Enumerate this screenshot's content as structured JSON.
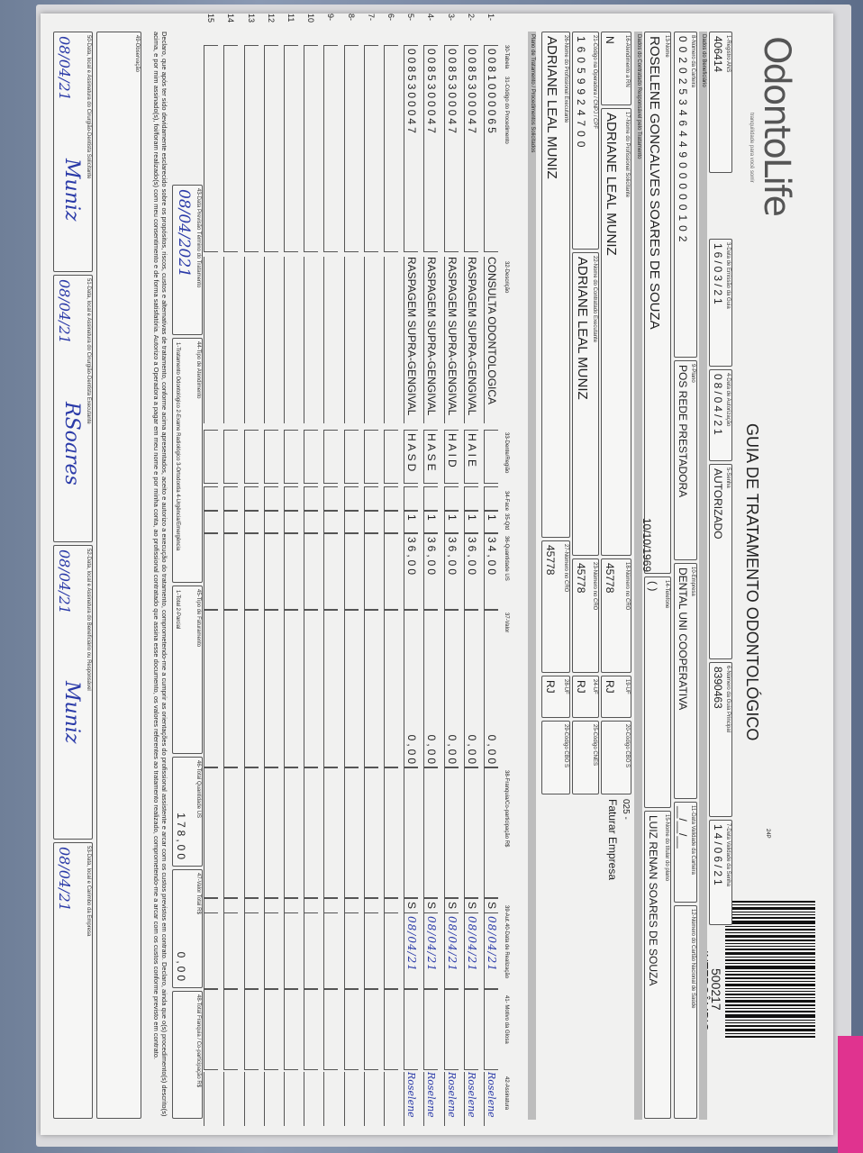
{
  "brand": {
    "logo": "OdontoLife",
    "tagline": "tranquilidade para você sorrir"
  },
  "title": "GUIA DE TRATAMENTO ODONTOLÓGICO",
  "page_code": "24P",
  "guide_number": "500217",
  "guide_type": "INTERCÂMBIO",
  "header": {
    "registro_ans": {
      "label": "1-Registro ANS",
      "value": "406414"
    },
    "data_emissao": {
      "label": "3-Data de Emissão da Guia",
      "value": "16/03/21"
    },
    "data_autorizacao": {
      "label": "4-Data de Autorização",
      "value": "08/04/21"
    },
    "senha": {
      "label": "5-Senha",
      "value": "AUTORIZADO"
    },
    "guia_principal": {
      "label": "6-Número da Guia Principal",
      "value": "8390463"
    },
    "validade_senha": {
      "label": "7-Data Validade da Senha",
      "value": "14/06/21"
    }
  },
  "beneficiario": {
    "section": "Dados do Beneficiário",
    "carteira": {
      "label": "8-Número da Carteira",
      "value": "00202534644900000102"
    },
    "plano": {
      "label": "9-Plano",
      "value": "POS REDE PRESTADORA"
    },
    "empresa": {
      "label": "10-Empresa",
      "value": "DENTAL UNI COOPERATIVA"
    },
    "validade_carteira": {
      "label": "11-Data Validade da Carteira",
      "value": "__/__/__"
    },
    "cns": {
      "label": "12-Número do Cartão Nacional de Saúde",
      "value": ""
    },
    "nome": {
      "label": "13-Nome",
      "value": "ROSELENE GONCALVES SOARES DE SOUZA"
    },
    "nascimento": "10/10/1969",
    "telefone": {
      "label": "14-Telefone",
      "value": "(   )"
    },
    "titular": {
      "label": "15-Nome do titular do plano",
      "value": "LUIZ RENAN SOARES DE SOUZA"
    }
  },
  "contratado": {
    "section": "Dados do Contratado Responsável pelo Tratamento",
    "rn": {
      "label": "16-Atendimento a RN",
      "value": "N"
    },
    "solicitante": {
      "label": "17-Nome do Profissional Solicitante",
      "value": "ADRIANE LEAL MUNIZ"
    },
    "cro18": {
      "label": "18-Número no CRO",
      "value": "45778"
    },
    "uf19": {
      "label": "19-UF",
      "value": "RJ"
    },
    "cbo20": {
      "label": "20-Código CBO S",
      "value": ""
    },
    "billing_code": "025 -",
    "billing_label": "Faturar Empresa",
    "codigo_operadora": {
      "label": "21-Código na Operadora / CNPJ / CPF",
      "value": "16059924700"
    },
    "executante": {
      "label": "22-Nome do Contratado Executante",
      "value": "ADRIANE LEAL MUNIZ"
    },
    "cro23": {
      "label": "23-Número no CRO",
      "value": "45778"
    },
    "uf24": {
      "label": "24-UF",
      "value": "RJ"
    },
    "cnes": {
      "label": "25-Código CNES",
      "value": ""
    },
    "prof_exec": {
      "label": "26-Nome do Profissional Executante",
      "value": "ADRIANE LEAL MUNIZ"
    },
    "cro27": {
      "label": "27-Número no CRO",
      "value": "45778"
    },
    "uf28": {
      "label": "28-UF",
      "value": "RJ"
    },
    "cbo29": {
      "label": "29-Código CBO S",
      "value": ""
    }
  },
  "plano_section": "Plano de Tratamento / Procedimentos Solicitados",
  "columns": [
    "30-Tabela",
    "31-Código do Procedimento",
    "32-Descrição",
    "33-Dente/Região",
    "34-Face",
    "35-Qtd",
    "36-Quantidade US",
    "37-Valor",
    "38-Franquia/Co-participação R$",
    "39-Aut.",
    "40-Data de Realização",
    "41- Motivo da Glosa",
    "42-Assinatura"
  ],
  "procedures": [
    {
      "n": "1-",
      "code": "0081000065",
      "desc": "CONSULTA ODONTOLOGICA",
      "dente": "",
      "qtd": "1",
      "us": "34,00",
      "valor": "0,00",
      "aut": "S",
      "data": "08/04/21",
      "assin": "Roselene"
    },
    {
      "n": "2-",
      "code": "0085300047",
      "desc": "RASPAGEM SUPRA-GENGIVAL",
      "dente": "HAIE",
      "qtd": "1",
      "us": "36,00",
      "valor": "0,00",
      "aut": "S",
      "data": "08/04/21",
      "assin": "Roselene"
    },
    {
      "n": "3-",
      "code": "0085300047",
      "desc": "RASPAGEM SUPRA-GENGIVAL",
      "dente": "HAID",
      "qtd": "1",
      "us": "36,00",
      "valor": "0,00",
      "aut": "S",
      "data": "08/04/21",
      "assin": "Roselene"
    },
    {
      "n": "4-",
      "code": "0085300047",
      "desc": "RASPAGEM SUPRA-GENGIVAL",
      "dente": "HASE",
      "qtd": "1",
      "us": "36,00",
      "valor": "0,00",
      "aut": "S",
      "data": "08/04/21",
      "assin": "Roselene"
    },
    {
      "n": "5-",
      "code": "0085300047",
      "desc": "RASPAGEM SUPRA-GENGIVAL",
      "dente": "HASD",
      "qtd": "1",
      "us": "36,00",
      "valor": "0,00",
      "aut": "S",
      "data": "08/04/21",
      "assin": "Roselene"
    },
    {
      "n": "6-"
    },
    {
      "n": "7-"
    },
    {
      "n": "8-"
    },
    {
      "n": "9-"
    },
    {
      "n": "10"
    },
    {
      "n": "11"
    },
    {
      "n": "12"
    },
    {
      "n": "13"
    },
    {
      "n": "14"
    },
    {
      "n": "15"
    }
  ],
  "footer": {
    "previsao": {
      "label": "43-Data Previsão Término do Tratamento",
      "value": "08/04/2021"
    },
    "tipo_atendimento": {
      "label": "44-Tipo de Atendimento",
      "options": "1-Tratamento Odontológico  2-Exame Radiológico  3-Ortodontia  4-Urgência/Emergência"
    },
    "tipo_faturamento": {
      "label": "45-Tipo de Faturamento",
      "options": "1-Total  2-Parcial"
    },
    "total_us": {
      "label": "46-Total Quantidade US",
      "value": "178,00"
    },
    "valor_total": {
      "label": "47-Valor Total R$",
      "value": "0,00"
    },
    "total_franquia": {
      "label": "48-Total Franquia / Co-participação R$",
      "value": ""
    },
    "declaration": "Declaro, que após ter sido devidamente esclarecido sobre os propósitos, riscos, custos e alternativas de tratamento, conforme acima apresentados, aceito e autorizo a execução do tratamento, comprometendo-me a cumprir as orientações do profissional assistente e arcar com os custos previstos em contrato. Declaro, ainda que o(s) procedimento(s) descrito(s) acima, e por mim assinado(s), foi/foram realizado(s) com meu consentimento e de forma satisfatória. Autorizo a Operadora a pagar em meu nome e por minha conta, ao profissional contratado que assina esse documento, os valores referentes ao tratamento realizado, comprometendo-me a arcar com os custos conforme previsto em contrato.",
    "observacao_label": "49-Observação",
    "sig50": {
      "label": "50-Data, local e Assinatura do Cirurgião-Dentista Solicitante",
      "date": "08/04/21",
      "sign": "Muniz"
    },
    "sig51": {
      "label": "51-Data, local e Assinatura do Cirurgião-Dentista Executante",
      "date": "08/04/21",
      "sign": "RSoares"
    },
    "sig52": {
      "label": "52-Data, local e Assinatura do Beneficiário ou Responsável",
      "date": "08/04/21",
      "sign": "Muniz"
    },
    "sig53": {
      "label": "53-Data, local e Carimbo da Empresa",
      "date": "08/04/21"
    }
  }
}
